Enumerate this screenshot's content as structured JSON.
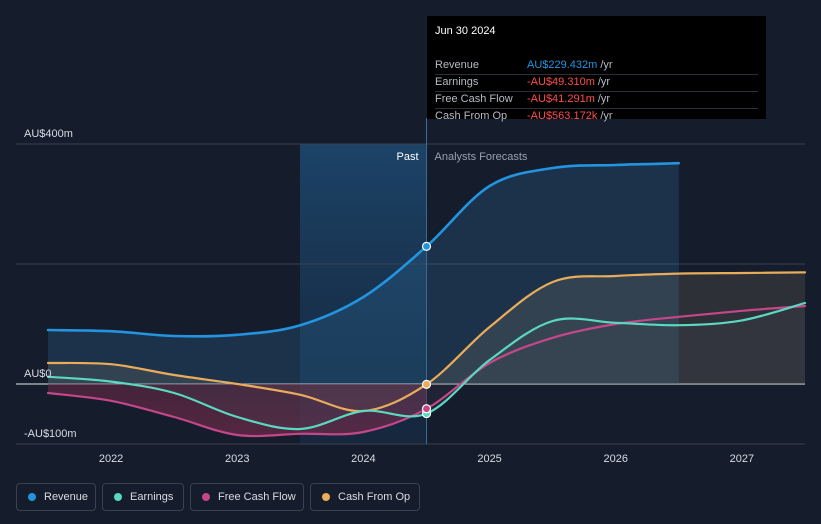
{
  "chart_data": {
    "type": "line",
    "x_axis": {
      "min": 2021.5,
      "max": 2027.5,
      "ticks": [
        "2022",
        "2023",
        "2024",
        "2025",
        "2026",
        "2027"
      ]
    },
    "y_axis": {
      "min": -100,
      "max": 400,
      "tick_labels": [
        "AU$400m",
        "AU$0",
        "-AU$100m"
      ]
    },
    "divider_x": 2024.5,
    "past_label": "Past",
    "forecast_label": "Analysts Forecasts",
    "series": [
      {
        "name": "Revenue",
        "color": "#2394df",
        "values": [
          [
            2021.5,
            90
          ],
          [
            2022,
            88
          ],
          [
            2022.5,
            80
          ],
          [
            2023,
            82
          ],
          [
            2023.5,
            98
          ],
          [
            2024,
            145
          ],
          [
            2024.5,
            229.4
          ],
          [
            2025,
            330
          ],
          [
            2025.5,
            360
          ],
          [
            2026,
            365
          ],
          [
            2026.5,
            368
          ]
        ]
      },
      {
        "name": "Earnings",
        "color": "#5bd8c0",
        "values": [
          [
            2021.5,
            12
          ],
          [
            2022,
            4
          ],
          [
            2022.5,
            -15
          ],
          [
            2023,
            -55
          ],
          [
            2023.5,
            -75
          ],
          [
            2024,
            -45
          ],
          [
            2024.5,
            -49.3
          ],
          [
            2025,
            40
          ],
          [
            2025.5,
            105
          ],
          [
            2026,
            102
          ],
          [
            2026.5,
            98
          ],
          [
            2027,
            106
          ],
          [
            2027.5,
            135
          ]
        ]
      },
      {
        "name": "Free Cash Flow",
        "color": "#c4478a",
        "values": [
          [
            2021.5,
            -15
          ],
          [
            2022,
            -28
          ],
          [
            2022.5,
            -55
          ],
          [
            2023,
            -85
          ],
          [
            2023.5,
            -83
          ],
          [
            2024,
            -80
          ],
          [
            2024.5,
            -41.3
          ],
          [
            2025,
            35
          ],
          [
            2025.5,
            77
          ],
          [
            2026,
            100
          ],
          [
            2026.5,
            112
          ],
          [
            2027,
            122
          ],
          [
            2027.5,
            130
          ]
        ]
      },
      {
        "name": "Cash From Op",
        "color": "#e9ac5a",
        "values": [
          [
            2021.5,
            35
          ],
          [
            2022,
            33
          ],
          [
            2022.5,
            15
          ],
          [
            2023,
            0
          ],
          [
            2023.5,
            -18
          ],
          [
            2024,
            -45
          ],
          [
            2024.5,
            -0.563
          ],
          [
            2025,
            95
          ],
          [
            2025.5,
            170
          ],
          [
            2026,
            180
          ],
          [
            2026.5,
            184
          ],
          [
            2027,
            185
          ],
          [
            2027.5,
            186
          ]
        ]
      }
    ],
    "highlight_points": [
      {
        "series": "Revenue",
        "x": 2024.5,
        "y": 229.432
      },
      {
        "series": "Earnings",
        "x": 2024.5,
        "y": -49.31
      },
      {
        "series": "Free Cash Flow",
        "x": 2024.5,
        "y": -41.291
      },
      {
        "series": "Cash From Op",
        "x": 2024.5,
        "y": -0.563
      }
    ]
  },
  "tooltip": {
    "date": "Jun 30 2024",
    "rows": [
      {
        "label": "Revenue",
        "value": "AU$229.432m",
        "unit": "/yr",
        "color": "#2394df"
      },
      {
        "label": "Earnings",
        "value": "-AU$49.310m",
        "unit": "/yr",
        "color": "#ff4d4d"
      },
      {
        "label": "Free Cash Flow",
        "value": "-AU$41.291m",
        "unit": "/yr",
        "color": "#ff4d4d"
      },
      {
        "label": "Cash From Op",
        "value": "-AU$563.172k",
        "unit": "/yr",
        "color": "#ff4d4d"
      }
    ]
  },
  "legend": {
    "items": [
      {
        "label": "Revenue",
        "color": "#2394df"
      },
      {
        "label": "Earnings",
        "color": "#5bd8c0"
      },
      {
        "label": "Free Cash Flow",
        "color": "#c4478a"
      },
      {
        "label": "Cash From Op",
        "color": "#e9ac5a"
      }
    ]
  }
}
